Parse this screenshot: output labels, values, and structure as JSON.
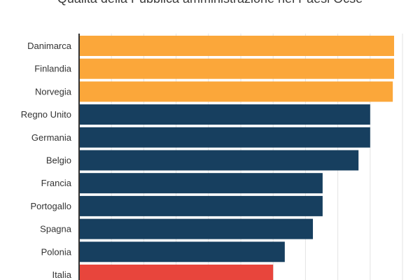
{
  "chart_data": {
    "type": "bar",
    "orientation": "horizontal",
    "title": "Qualità della Pubblica amministrazione nei Paesi Ocse",
    "xlabel": "",
    "ylabel": "",
    "xlim": [
      0,
      10
    ],
    "grid": true,
    "categories": [
      "Danimarca",
      "Finlandia",
      "Norvegia",
      "Regno Unito",
      "Germania",
      "Belgio",
      "Francia",
      "Portogallo",
      "Spagna",
      "Polonia",
      "Italia"
    ],
    "values": [
      9.74,
      9.74,
      9.7,
      9.0,
      9.0,
      8.64,
      7.53,
      7.53,
      7.23,
      6.36,
      6.0
    ],
    "colors": [
      "#fba73a",
      "#fba73a",
      "#fba73a",
      "#173f5f",
      "#173f5f",
      "#173f5f",
      "#173f5f",
      "#173f5f",
      "#173f5f",
      "#173f5f",
      "#e8453c"
    ]
  }
}
